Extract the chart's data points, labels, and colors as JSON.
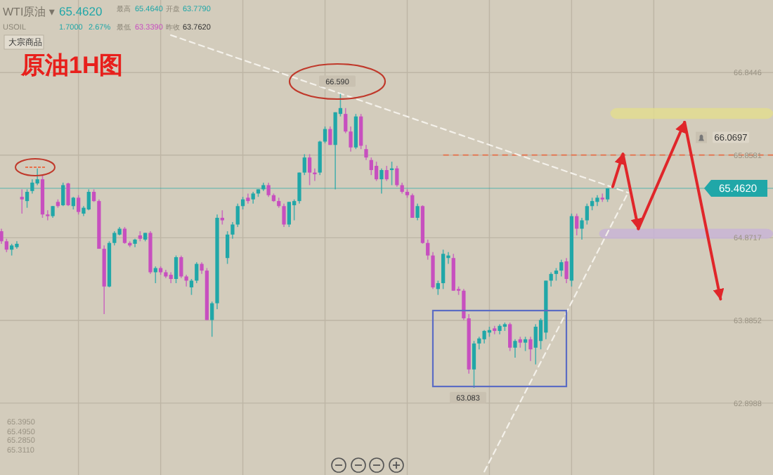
{
  "chart_data": {
    "type": "candlestick",
    "title": "原油1H图",
    "categories": [
      null,
      null,
      null,
      null,
      null,
      null,
      null,
      null,
      null,
      null,
      null,
      null,
      null,
      null,
      null,
      null,
      null,
      null,
      null,
      null,
      null,
      null,
      null,
      null,
      null,
      null,
      null,
      null,
      null,
      null,
      null,
      null,
      null,
      null,
      null,
      null,
      null,
      null,
      null,
      null,
      null,
      null,
      null,
      null,
      null,
      null,
      null,
      null,
      null,
      null,
      null,
      null,
      null,
      null,
      null,
      null,
      null,
      null,
      null,
      null,
      null,
      null,
      null,
      null,
      null,
      null,
      null,
      null,
      null,
      null,
      null,
      null,
      null,
      null,
      null,
      null,
      null,
      null,
      null,
      null,
      null,
      null,
      null,
      null,
      null,
      null,
      null,
      null,
      null,
      null,
      null,
      null,
      null,
      null,
      null,
      null,
      null,
      null,
      null,
      null,
      null,
      null,
      null,
      null,
      null,
      null,
      null,
      null,
      null,
      null,
      null,
      null,
      null,
      null,
      null,
      null,
      null,
      null,
      null,
      null,
      null,
      null,
      null,
      null,
      null,
      null,
      null,
      null,
      null,
      null,
      null,
      null,
      null,
      null,
      null,
      null,
      null,
      null,
      null,
      null,
      null,
      null,
      null
    ],
    "ohlc": [
      [
        64.95,
        64.98,
        64.8,
        64.83
      ],
      [
        64.83,
        64.86,
        64.7,
        64.73
      ],
      [
        64.73,
        64.8,
        64.66,
        64.78
      ],
      [
        64.76,
        64.83,
        64.74,
        64.8
      ],
      [
        65.36,
        65.45,
        65.16,
        65.33
      ],
      [
        65.31,
        65.45,
        65.23,
        65.42
      ],
      [
        65.43,
        65.57,
        65.4,
        65.53
      ],
      [
        65.52,
        65.7,
        65.5,
        65.57
      ],
      [
        65.57,
        65.62,
        65.11,
        65.15
      ],
      [
        65.15,
        65.2,
        65.08,
        65.13
      ],
      [
        65.13,
        65.25,
        65.11,
        65.25
      ],
      [
        65.3,
        65.33,
        65.23,
        65.25
      ],
      [
        65.26,
        65.53,
        65.25,
        65.5
      ],
      [
        65.52,
        65.53,
        65.25,
        65.26
      ],
      [
        65.25,
        65.36,
        65.21,
        65.35
      ],
      [
        65.35,
        65.38,
        65.15,
        65.18
      ],
      [
        65.16,
        65.25,
        65.13,
        65.23
      ],
      [
        65.21,
        65.45,
        65.2,
        65.42
      ],
      [
        65.42,
        65.45,
        65.3,
        65.31
      ],
      [
        65.31,
        65.33,
        64.74,
        64.74
      ],
      [
        64.74,
        64.78,
        63.96,
        64.29
      ],
      [
        64.29,
        64.83,
        64.28,
        64.81
      ],
      [
        64.81,
        64.95,
        64.78,
        64.93
      ],
      [
        64.91,
        65.0,
        64.9,
        64.98
      ],
      [
        64.98,
        65.0,
        64.8,
        64.81
      ],
      [
        64.81,
        64.83,
        64.76,
        64.78
      ],
      [
        64.8,
        64.86,
        64.76,
        64.85
      ],
      [
        64.9,
        64.95,
        64.83,
        64.86
      ],
      [
        64.85,
        64.93,
        64.83,
        64.93
      ],
      [
        64.93,
        64.95,
        64.44,
        64.46
      ],
      [
        64.46,
        64.53,
        64.33,
        64.51
      ],
      [
        64.51,
        64.53,
        64.43,
        64.46
      ],
      [
        64.46,
        64.49,
        64.39,
        64.41
      ],
      [
        64.43,
        64.46,
        64.33,
        64.38
      ],
      [
        64.38,
        64.66,
        64.33,
        64.64
      ],
      [
        64.64,
        64.66,
        64.39,
        64.41
      ],
      [
        64.41,
        64.43,
        64.29,
        64.36
      ],
      [
        64.28,
        64.38,
        64.19,
        64.36
      ],
      [
        64.36,
        64.58,
        64.33,
        64.56
      ],
      [
        64.56,
        64.58,
        64.44,
        64.48
      ],
      [
        64.48,
        64.51,
        63.89,
        63.89
      ],
      [
        63.89,
        64.11,
        63.69,
        64.09
      ],
      [
        64.09,
        65.15,
        64.02,
        65.11
      ],
      [
        65.11,
        65.2,
        65.03,
        65.08
      ],
      [
        64.63,
        64.95,
        64.56,
        64.91
      ],
      [
        64.91,
        65.06,
        64.86,
        65.03
      ],
      [
        65.03,
        65.28,
        65.0,
        65.25
      ],
      [
        65.25,
        65.36,
        65.21,
        65.33
      ],
      [
        65.35,
        65.4,
        65.28,
        65.31
      ],
      [
        65.33,
        65.42,
        65.28,
        65.4
      ],
      [
        65.4,
        65.45,
        65.36,
        65.45
      ],
      [
        65.45,
        65.53,
        65.43,
        65.5
      ],
      [
        65.5,
        65.53,
        65.36,
        65.38
      ],
      [
        65.38,
        65.4,
        65.3,
        65.31
      ],
      [
        65.31,
        65.35,
        65.23,
        65.25
      ],
      [
        65.25,
        65.28,
        65.0,
        65.03
      ],
      [
        65.03,
        65.3,
        65.0,
        65.3
      ],
      [
        65.26,
        65.33,
        65.08,
        65.31
      ],
      [
        65.31,
        65.65,
        65.28,
        65.65
      ],
      [
        65.65,
        65.87,
        65.62,
        65.83
      ],
      [
        65.83,
        65.87,
        65.5,
        65.65
      ],
      [
        65.65,
        65.7,
        65.55,
        65.63
      ],
      [
        65.65,
        66.03,
        65.62,
        66.02
      ],
      [
        66.02,
        66.2,
        66.0,
        66.17
      ],
      [
        66.17,
        66.2,
        65.98,
        65.98
      ],
      [
        65.98,
        66.37,
        65.45,
        66.37
      ],
      [
        66.35,
        66.59,
        66.32,
        66.42
      ],
      [
        66.35,
        66.42,
        66.12,
        66.14
      ],
      [
        66.14,
        66.2,
        65.9,
        65.95
      ],
      [
        65.95,
        66.35,
        65.93,
        66.32
      ],
      [
        66.32,
        66.35,
        65.93,
        65.97
      ],
      [
        65.93,
        65.98,
        65.8,
        65.83
      ],
      [
        65.8,
        65.83,
        65.62,
        65.68
      ],
      [
        65.73,
        65.78,
        65.55,
        65.57
      ],
      [
        65.57,
        65.7,
        65.4,
        65.68
      ],
      [
        65.68,
        65.73,
        65.55,
        65.57
      ],
      [
        65.68,
        65.78,
        65.5,
        65.7
      ],
      [
        65.7,
        65.73,
        65.48,
        65.5
      ],
      [
        65.5,
        65.53,
        65.4,
        65.42
      ],
      [
        65.42,
        65.45,
        65.35,
        65.38
      ],
      [
        65.38,
        65.4,
        65.11,
        65.11
      ],
      [
        65.11,
        65.28,
        65.08,
        65.25
      ],
      [
        65.25,
        65.26,
        64.8,
        64.81
      ],
      [
        64.81,
        64.85,
        64.61,
        64.66
      ],
      [
        64.66,
        64.7,
        64.26,
        64.28
      ],
      [
        64.26,
        64.36,
        64.19,
        64.33
      ],
      [
        64.33,
        64.73,
        64.26,
        64.68
      ],
      [
        64.63,
        64.7,
        64.56,
        64.66
      ],
      [
        64.63,
        64.68,
        64.24,
        64.24
      ],
      [
        64.26,
        64.29,
        64.19,
        64.24
      ],
      [
        64.24,
        64.26,
        63.89,
        63.91
      ],
      [
        63.91,
        63.96,
        63.25,
        63.3
      ],
      [
        63.3,
        63.64,
        63.08,
        63.61
      ],
      [
        63.61,
        63.69,
        63.54,
        63.67
      ],
      [
        63.66,
        63.77,
        63.61,
        63.76
      ],
      [
        63.74,
        63.81,
        63.69,
        63.77
      ],
      [
        63.79,
        63.82,
        63.72,
        63.76
      ],
      [
        63.76,
        63.84,
        63.72,
        63.82
      ],
      [
        63.81,
        63.86,
        63.76,
        63.84
      ],
      [
        63.84,
        63.86,
        63.52,
        63.56
      ],
      [
        63.56,
        63.66,
        63.44,
        63.64
      ],
      [
        63.66,
        63.69,
        63.56,
        63.62
      ],
      [
        63.62,
        63.69,
        63.52,
        63.66
      ],
      [
        63.66,
        63.69,
        63.4,
        63.54
      ],
      [
        63.56,
        63.84,
        63.36,
        63.81
      ],
      [
        63.64,
        63.91,
        63.54,
        63.89
      ],
      [
        63.74,
        64.36,
        63.66,
        64.36
      ],
      [
        64.36,
        64.46,
        64.29,
        64.44
      ],
      [
        64.44,
        64.51,
        64.36,
        64.48
      ],
      [
        64.48,
        64.61,
        64.41,
        64.58
      ],
      [
        64.59,
        64.63,
        64.33,
        64.38
      ],
      [
        64.36,
        65.16,
        64.29,
        65.13
      ],
      [
        65.13,
        65.16,
        64.9,
        64.98
      ],
      [
        64.98,
        65.11,
        64.85,
        65.08
      ],
      [
        65.08,
        65.28,
        65.03,
        65.25
      ],
      [
        65.25,
        65.35,
        65.2,
        65.31
      ],
      [
        65.3,
        65.38,
        65.25,
        65.35
      ],
      [
        65.35,
        65.4,
        65.3,
        65.33
      ],
      [
        65.33,
        65.464,
        65.3,
        65.462
      ],
      null,
      null,
      null,
      null,
      null,
      null,
      null,
      null,
      null,
      null,
      null,
      null,
      null,
      null,
      null,
      null,
      null,
      null,
      null,
      null,
      null,
      null,
      null,
      null
    ],
    "colors": [
      "#c74fbf",
      "#c74fbf",
      "#20a7a8",
      "#20a7a8",
      "#c74fbf",
      "#20a7a8",
      "#20a7a8",
      "#20a7a8",
      "#c74fbf",
      "#c74fbf",
      "#20a7a8",
      "#c74fbf",
      "#20a7a8",
      "#c74fbf",
      "#20a7a8",
      "#c74fbf",
      "#20a7a8",
      "#20a7a8",
      "#c74fbf",
      "#c74fbf",
      "#c74fbf",
      "#20a7a8",
      "#20a7a8",
      "#20a7a8",
      "#c74fbf",
      "#c74fbf",
      "#20a7a8",
      "#c74fbf",
      "#20a7a8",
      "#c74fbf",
      "#20a7a8",
      "#c74fbf",
      "#c74fbf",
      "#c74fbf",
      "#20a7a8",
      "#c74fbf",
      "#c74fbf",
      "#20a7a8",
      "#20a7a8",
      "#c74fbf",
      "#c74fbf",
      "#20a7a8",
      "#20a7a8",
      "#c74fbf",
      "#20a7a8",
      "#20a7a8",
      "#20a7a8",
      "#20a7a8",
      "#c74fbf",
      "#20a7a8",
      "#20a7a8",
      "#20a7a8",
      "#c74fbf",
      "#c74fbf",
      "#c74fbf",
      "#c74fbf",
      "#20a7a8",
      "#20a7a8",
      "#20a7a8",
      "#20a7a8",
      "#c74fbf",
      "#c74fbf",
      "#20a7a8",
      "#20a7a8",
      "#c74fbf",
      "#20a7a8",
      "#20a7a8",
      "#c74fbf",
      "#c74fbf",
      "#20a7a8",
      "#c74fbf",
      "#c74fbf",
      "#c74fbf",
      "#c74fbf",
      "#20a7a8",
      "#c74fbf",
      "#20a7a8",
      "#c74fbf",
      "#c74fbf",
      "#c74fbf",
      "#c74fbf",
      "#20a7a8",
      "#c74fbf",
      "#c74fbf",
      "#c74fbf",
      "#20a7a8",
      "#20a7a8",
      "#20a7a8",
      "#c74fbf",
      "#c74fbf",
      "#c74fbf",
      "#c74fbf",
      "#20a7a8",
      "#20a7a8",
      "#20a7a8",
      "#20a7a8",
      "#c74fbf",
      "#20a7a8",
      "#20a7a8",
      "#c74fbf",
      "#20a7a8",
      "#c74fbf",
      "#20a7a8",
      "#c74fbf",
      "#20a7a8",
      "#20a7a8",
      "#20a7a8",
      "#20a7a8",
      "#20a7a8",
      "#20a7a8",
      "#c74fbf",
      "#20a7a8",
      "#c74fbf",
      "#20a7a8",
      "#20a7a8",
      "#20a7a8",
      "#20a7a8",
      "#c74fbf",
      "#20a7a8",
      null,
      null,
      null,
      null,
      null,
      null,
      null,
      null,
      null,
      null,
      null,
      null,
      null,
      null,
      null,
      null,
      null,
      null,
      null,
      null,
      null,
      null,
      null,
      null
    ],
    "series": [
      {
        "type": "line",
        "color": "#f4f1ea",
        "line_style": "dashed",
        "values": [
          null,
          null,
          null,
          null,
          null,
          null,
          null,
          null,
          null,
          null,
          null,
          null,
          null,
          null,
          null,
          null,
          null,
          null,
          null,
          null,
          null,
          null,
          null,
          null,
          null,
          null,
          null,
          null,
          null,
          null,
          null,
          null,
          null,
          67.29,
          null,
          null,
          null,
          null,
          null,
          null,
          null,
          null,
          null,
          null,
          null,
          null,
          null,
          null,
          null,
          null,
          null,
          null,
          null,
          null,
          null,
          null,
          null,
          null,
          null,
          null,
          null,
          null,
          null,
          null,
          null,
          null,
          null,
          null,
          null,
          null,
          null,
          null,
          null,
          null,
          null,
          null,
          null,
          null,
          null,
          null,
          null,
          null,
          null,
          null,
          null,
          null,
          null,
          null,
          null,
          null,
          null,
          null,
          null,
          null,
          null,
          null,
          null,
          null,
          null,
          null,
          null,
          null,
          null,
          null,
          null,
          null,
          null,
          null,
          null,
          null,
          null,
          null,
          null,
          null,
          null,
          null,
          null,
          null,
          null,
          null,
          null,
          null,
          65.41,
          null,
          null,
          null,
          null,
          null,
          null,
          null,
          null,
          null,
          null,
          null,
          null,
          null,
          null,
          null,
          null,
          null,
          null,
          null,
          null
        ]
      },
      {
        "type": "line",
        "color": "#f4f1ea",
        "line_style": "dashed",
        "values": [
          null,
          null,
          null,
          null,
          null,
          null,
          null,
          null,
          null,
          null,
          null,
          null,
          null,
          null,
          null,
          null,
          null,
          null,
          null,
          null,
          null,
          null,
          null,
          null,
          null,
          null,
          null,
          null,
          null,
          null,
          null,
          null,
          null,
          null,
          null,
          null,
          null,
          null,
          null,
          null,
          null,
          null,
          null,
          null,
          null,
          null,
          null,
          null,
          null,
          null,
          null,
          null,
          null,
          null,
          null,
          null,
          null,
          null,
          null,
          null,
          null,
          null,
          null,
          null,
          null,
          null,
          null,
          null,
          null,
          null,
          null,
          null,
          null,
          null,
          null,
          null,
          null,
          null,
          null,
          null,
          null,
          null,
          null,
          null,
          null,
          null,
          null,
          null,
          null,
          null,
          null,
          null,
          null,
          null,
          62.08,
          null,
          null,
          null,
          null,
          null,
          null,
          null,
          null,
          null,
          null,
          null,
          null,
          null,
          null,
          null,
          null,
          null,
          null,
          null,
          null,
          null,
          null,
          null,
          null,
          null,
          null,
          null,
          65.41,
          null,
          null,
          null,
          null,
          null,
          null,
          null,
          null,
          null,
          null,
          null,
          null,
          null,
          null,
          null,
          null,
          null,
          null,
          null,
          null
        ]
      },
      {
        "type": "line",
        "color": "#e0262a",
        "line_style": "solid",
        "values": [
          null,
          null,
          null,
          null,
          null,
          null,
          null,
          null,
          null,
          null,
          null,
          null,
          null,
          null,
          null,
          null,
          null,
          null,
          null,
          null,
          null,
          null,
          null,
          null,
          null,
          null,
          null,
          null,
          null,
          null,
          null,
          null,
          null,
          null,
          null,
          null,
          null,
          null,
          null,
          null,
          null,
          null,
          null,
          null,
          null,
          null,
          null,
          null,
          null,
          null,
          null,
          null,
          null,
          null,
          null,
          null,
          null,
          null,
          null,
          null,
          null,
          null,
          null,
          null,
          null,
          null,
          null,
          null,
          null,
          null,
          null,
          null,
          null,
          null,
          null,
          null,
          null,
          null,
          null,
          null,
          null,
          null,
          null,
          null,
          null,
          null,
          null,
          null,
          null,
          null,
          null,
          null,
          null,
          null,
          null,
          null,
          null,
          null,
          null,
          null,
          null,
          null,
          null,
          null,
          null,
          null,
          null,
          null,
          null,
          null,
          null,
          null,
          null,
          null,
          null,
          null,
          null,
          null,
          null,
          65.48,
          null,
          65.87,
          null,
          null,
          64.98,
          null,
          null,
          null,
          null,
          null,
          null,
          null,
          null,
          66.25,
          null,
          null,
          null,
          null,
          null,
          null,
          64.14,
          null,
          null
        ]
      }
    ],
    "ylim": [
      62.04,
      67.71
    ],
    "yticks": [
      66.8446,
      65.8581,
      64.8717,
      63.8852,
      62.8988
    ],
    "grid": true,
    "tick_labels": "y",
    "bands": [
      {
        "axis": "y",
        "from": 66.29,
        "to": 66.42,
        "color": "#e2dc90"
      },
      {
        "axis": "y",
        "from": 64.86,
        "to": 64.98,
        "color": "#c8b4d6"
      }
    ],
    "ref_lines": [
      {
        "axis": "y",
        "value": 65.462,
        "label": "65.4620",
        "color": "#20a7a8",
        "line_style": "solid"
      },
      {
        "axis": "y",
        "value": 65.86,
        "color": "#e8704a",
        "line_style": "dashed"
      }
    ],
    "annotations": [
      "WTI原油 ▾",
      "USOIL",
      "65.4620",
      "1.7000",
      "2.67%",
      "最高",
      "65.4640",
      "最低",
      "63.3390",
      "开盘",
      "63.7790",
      "昨收",
      "63.7620",
      "大宗商品",
      "65.3950",
      "65.4950",
      "65.2850",
      "65.3110",
      {
        "text": "66.590",
        "y": 66.59
      },
      {
        "text": "63.083",
        "y": 63.083
      },
      {
        "text": "66.0697",
        "y": 66.0697
      }
    ]
  }
}
